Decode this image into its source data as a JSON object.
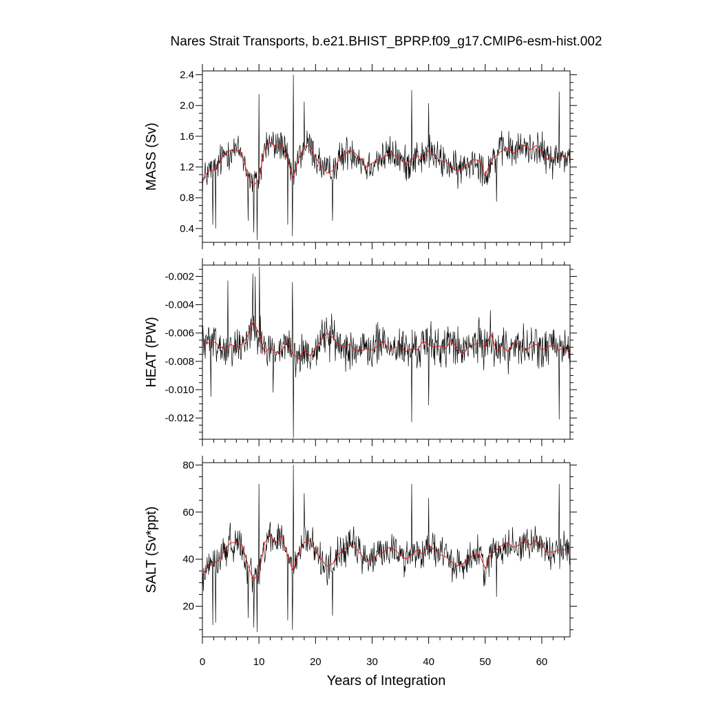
{
  "chart_data": {
    "title": "Nares Strait Transports, b.e21.BHIST_BPRP.f09_g17.CMIP6-esm-hist.002",
    "xlabel": "Years of Integration",
    "xlim": [
      0,
      65
    ],
    "xticks": [
      "0",
      "10",
      "20",
      "30",
      "40",
      "50",
      "60"
    ],
    "colors": {
      "monthly": "#000000",
      "smoothed": "#e31a1c"
    },
    "panels": [
      {
        "type": "line",
        "ylabel": "MASS (Sv)",
        "ylim": [
          0.22,
          2.45
        ],
        "yticks": [
          "0.4",
          "0.8",
          "1.2",
          "1.6",
          "2.0",
          "2.4"
        ],
        "anchors": [
          [
            0,
            1.0
          ],
          [
            1,
            1.15
          ],
          [
            2,
            1.15
          ],
          [
            3,
            1.25
          ],
          [
            4,
            1.38
          ],
          [
            5,
            1.42
          ],
          [
            6,
            1.42
          ],
          [
            7,
            1.38
          ],
          [
            8,
            1.1
          ],
          [
            9,
            0.95
          ],
          [
            10,
            1.05
          ],
          [
            11,
            1.45
          ],
          [
            12,
            1.52
          ],
          [
            13,
            1.45
          ],
          [
            14,
            1.52
          ],
          [
            15,
            1.3
          ],
          [
            16,
            1.05
          ],
          [
            17,
            1.3
          ],
          [
            18,
            1.47
          ],
          [
            19,
            1.48
          ],
          [
            20,
            1.32
          ],
          [
            21,
            1.22
          ],
          [
            22,
            1.12
          ],
          [
            23,
            1.15
          ],
          [
            24,
            1.28
          ],
          [
            25,
            1.35
          ],
          [
            26,
            1.42
          ],
          [
            27,
            1.38
          ],
          [
            28,
            1.3
          ],
          [
            29,
            1.2
          ],
          [
            30,
            1.25
          ],
          [
            31,
            1.3
          ],
          [
            32,
            1.32
          ],
          [
            33,
            1.38
          ],
          [
            34,
            1.35
          ],
          [
            35,
            1.3
          ],
          [
            36,
            1.22
          ],
          [
            37,
            1.3
          ],
          [
            38,
            1.35
          ],
          [
            39,
            1.3
          ],
          [
            40,
            1.42
          ],
          [
            41,
            1.35
          ],
          [
            42,
            1.28
          ],
          [
            43,
            1.27
          ],
          [
            44,
            1.2
          ],
          [
            45,
            1.15
          ],
          [
            46,
            1.18
          ],
          [
            47,
            1.25
          ],
          [
            48,
            1.3
          ],
          [
            49,
            1.28
          ],
          [
            50,
            1.08
          ],
          [
            51,
            1.28
          ],
          [
            52,
            1.35
          ],
          [
            53,
            1.42
          ],
          [
            54,
            1.45
          ],
          [
            55,
            1.38
          ],
          [
            56,
            1.43
          ],
          [
            57,
            1.48
          ],
          [
            58,
            1.42
          ],
          [
            59,
            1.48
          ],
          [
            60,
            1.4
          ],
          [
            61,
            1.3
          ],
          [
            62,
            1.32
          ],
          [
            63,
            1.33
          ],
          [
            64,
            1.33
          ],
          [
            65,
            1.35
          ]
        ],
        "noise_amp": 0.17,
        "spikes": [
          [
            1.8,
            0.45
          ],
          [
            2.3,
            0.4
          ],
          [
            8.1,
            0.5
          ],
          [
            9.1,
            0.35
          ],
          [
            9.7,
            0.25
          ],
          [
            10.0,
            2.15
          ],
          [
            15.1,
            0.45
          ],
          [
            15.9,
            0.3
          ],
          [
            16.05,
            2.4
          ],
          [
            18.0,
            2.05
          ],
          [
            23.0,
            0.5
          ],
          [
            37.0,
            2.2
          ],
          [
            40.0,
            2.03
          ],
          [
            52.0,
            0.75
          ],
          [
            63.1,
            2.18
          ]
        ]
      },
      {
        "type": "line",
        "ylabel": "HEAT (PW)",
        "ylim": [
          -0.0135,
          -0.0012
        ],
        "yticks": [
          "-0.002",
          "-0.004",
          "-0.006",
          "-0.008",
          "-0.010",
          "-0.012"
        ],
        "anchors": [
          [
            0,
            -0.0066
          ],
          [
            1,
            -0.0067
          ],
          [
            2,
            -0.0066
          ],
          [
            3,
            -0.0069
          ],
          [
            4,
            -0.0072
          ],
          [
            5,
            -0.0068
          ],
          [
            6,
            -0.007
          ],
          [
            7,
            -0.0068
          ],
          [
            8,
            -0.0062
          ],
          [
            9,
            -0.0052
          ],
          [
            10,
            -0.006
          ],
          [
            11,
            -0.0074
          ],
          [
            12,
            -0.007
          ],
          [
            13,
            -0.0074
          ],
          [
            14,
            -0.0073
          ],
          [
            15,
            -0.0066
          ],
          [
            16,
            -0.0075
          ],
          [
            17,
            -0.0078
          ],
          [
            18,
            -0.0072
          ],
          [
            19,
            -0.0076
          ],
          [
            20,
            -0.0071
          ],
          [
            21,
            -0.0065
          ],
          [
            22,
            -0.006
          ],
          [
            23,
            -0.0063
          ],
          [
            24,
            -0.0068
          ],
          [
            25,
            -0.007
          ],
          [
            26,
            -0.0068
          ],
          [
            27,
            -0.0072
          ],
          [
            28,
            -0.0073
          ],
          [
            29,
            -0.0071
          ],
          [
            30,
            -0.0072
          ],
          [
            31,
            -0.0069
          ],
          [
            32,
            -0.0065
          ],
          [
            33,
            -0.0072
          ],
          [
            34,
            -0.007
          ],
          [
            35,
            -0.007
          ],
          [
            36,
            -0.0073
          ],
          [
            37,
            -0.0071
          ],
          [
            38,
            -0.0072
          ],
          [
            39,
            -0.0066
          ],
          [
            40,
            -0.0068
          ],
          [
            41,
            -0.007
          ],
          [
            42,
            -0.0069
          ],
          [
            43,
            -0.0071
          ],
          [
            44,
            -0.0065
          ],
          [
            45,
            -0.007
          ],
          [
            46,
            -0.0075
          ],
          [
            47,
            -0.007
          ],
          [
            48,
            -0.0068
          ],
          [
            49,
            -0.0067
          ],
          [
            50,
            -0.007
          ],
          [
            51,
            -0.006
          ],
          [
            52,
            -0.0073
          ],
          [
            53,
            -0.0069
          ],
          [
            54,
            -0.0073
          ],
          [
            55,
            -0.0067
          ],
          [
            56,
            -0.0068
          ],
          [
            57,
            -0.0072
          ],
          [
            58,
            -0.007
          ],
          [
            59,
            -0.0068
          ],
          [
            60,
            -0.0072
          ],
          [
            61,
            -0.007
          ],
          [
            62,
            -0.0068
          ],
          [
            63,
            -0.0072
          ],
          [
            64,
            -0.007
          ],
          [
            65,
            -0.0075
          ]
        ],
        "noise_amp": 0.0011,
        "spikes": [
          [
            1.5,
            -0.0105
          ],
          [
            4.5,
            -0.0023
          ],
          [
            8.9,
            -0.0018
          ],
          [
            9.3,
            -0.002
          ],
          [
            10.1,
            -0.0013
          ],
          [
            12.5,
            -0.0102
          ],
          [
            15.9,
            -0.0024
          ],
          [
            16.05,
            -0.0134
          ],
          [
            37.0,
            -0.0123
          ],
          [
            40.0,
            -0.0111
          ],
          [
            63.1,
            -0.0121
          ]
        ]
      },
      {
        "type": "line",
        "ylabel": "SALT (Sv*ppt)",
        "ylim": [
          7,
          81
        ],
        "yticks": [
          "20",
          "40",
          "60",
          "80"
        ],
        "anchors": [
          [
            0,
            33
          ],
          [
            1,
            37
          ],
          [
            2,
            38
          ],
          [
            3,
            40
          ],
          [
            4,
            44
          ],
          [
            5,
            47
          ],
          [
            6,
            47
          ],
          [
            7,
            46
          ],
          [
            8,
            38
          ],
          [
            9,
            31
          ],
          [
            10,
            34
          ],
          [
            11,
            47
          ],
          [
            12,
            50
          ],
          [
            13,
            47
          ],
          [
            14,
            50
          ],
          [
            15,
            42
          ],
          [
            16,
            35
          ],
          [
            17,
            42
          ],
          [
            18,
            47
          ],
          [
            19,
            48
          ],
          [
            20,
            43
          ],
          [
            21,
            40
          ],
          [
            22,
            37
          ],
          [
            23,
            38
          ],
          [
            24,
            42
          ],
          [
            25,
            44
          ],
          [
            26,
            46
          ],
          [
            27,
            45
          ],
          [
            28,
            42
          ],
          [
            29,
            39
          ],
          [
            30,
            40
          ],
          [
            31,
            42
          ],
          [
            32,
            43
          ],
          [
            33,
            45
          ],
          [
            34,
            44
          ],
          [
            35,
            42
          ],
          [
            36,
            40
          ],
          [
            37,
            42
          ],
          [
            38,
            44
          ],
          [
            39,
            42
          ],
          [
            40,
            46
          ],
          [
            41,
            44
          ],
          [
            42,
            42
          ],
          [
            43,
            41
          ],
          [
            44,
            39
          ],
          [
            45,
            37
          ],
          [
            46,
            38
          ],
          [
            47,
            40
          ],
          [
            48,
            42
          ],
          [
            49,
            42
          ],
          [
            50,
            36
          ],
          [
            51,
            42
          ],
          [
            52,
            44
          ],
          [
            53,
            46
          ],
          [
            54,
            47
          ],
          [
            55,
            45
          ],
          [
            56,
            46
          ],
          [
            57,
            48
          ],
          [
            58,
            46
          ],
          [
            59,
            48
          ],
          [
            60,
            46
          ],
          [
            61,
            43
          ],
          [
            62,
            43
          ],
          [
            63,
            44
          ],
          [
            64,
            44
          ],
          [
            65,
            44
          ]
        ],
        "noise_amp": 5.5,
        "spikes": [
          [
            1.8,
            12
          ],
          [
            2.3,
            13
          ],
          [
            8.1,
            15
          ],
          [
            9.1,
            11
          ],
          [
            9.7,
            9
          ],
          [
            10.0,
            72
          ],
          [
            15.1,
            14
          ],
          [
            15.9,
            10
          ],
          [
            16.05,
            80
          ],
          [
            18.0,
            68
          ],
          [
            23.0,
            16
          ],
          [
            37.0,
            72
          ],
          [
            40.0,
            66
          ],
          [
            52.0,
            24
          ],
          [
            63.1,
            72
          ]
        ]
      }
    ]
  }
}
